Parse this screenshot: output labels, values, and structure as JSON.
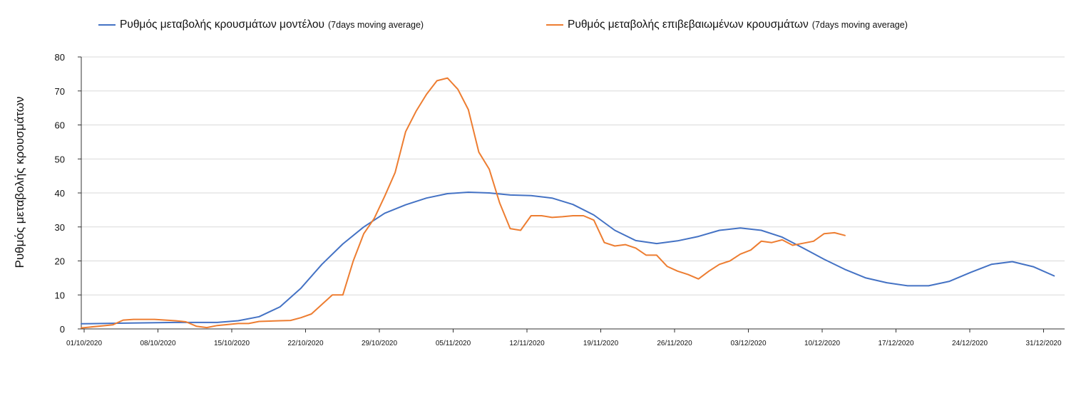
{
  "chart_data": {
    "type": "line",
    "title": "",
    "xlabel": "",
    "ylabel": "Ρυθμός μεταβολής κρουσμάτων",
    "ylim": [
      0,
      80
    ],
    "yticks": [
      0,
      10,
      20,
      30,
      40,
      50,
      60,
      70,
      80
    ],
    "xlim": [
      "01/10/2020",
      "03/01/2021"
    ],
    "xticks": [
      "01/10/2020",
      "08/10/2020",
      "15/10/2020",
      "22/10/2020",
      "29/10/2020",
      "05/11/2020",
      "12/11/2020",
      "19/11/2020",
      "26/11/2020",
      "03/12/2020",
      "10/12/2020",
      "17/12/2020",
      "24/12/2020",
      "31/12/2020"
    ],
    "grid": "horizontal",
    "legend_position": "top",
    "series": [
      {
        "name": "Ρυθμός μεταβολής κρουσμάτων μοντέλου",
        "note": "(7days moving average)",
        "color": "#4472c4",
        "points": [
          [
            "01/10/2020",
            1.5
          ],
          [
            "05/10/2020",
            1.7
          ],
          [
            "10/10/2020",
            1.9
          ],
          [
            "14/10/2020",
            1.9
          ],
          [
            "16/10/2020",
            2.4
          ],
          [
            "18/10/2020",
            3.6
          ],
          [
            "20/10/2020",
            6.5
          ],
          [
            "22/10/2020",
            12.0
          ],
          [
            "24/10/2020",
            19.0
          ],
          [
            "26/10/2020",
            25.0
          ],
          [
            "28/10/2020",
            30.0
          ],
          [
            "30/10/2020",
            34.0
          ],
          [
            "01/11/2020",
            36.5
          ],
          [
            "03/11/2020",
            38.5
          ],
          [
            "05/11/2020",
            39.8
          ],
          [
            "07/11/2020",
            40.2
          ],
          [
            "09/11/2020",
            40.0
          ],
          [
            "11/11/2020",
            39.4
          ],
          [
            "13/11/2020",
            39.2
          ],
          [
            "15/11/2020",
            38.5
          ],
          [
            "17/11/2020",
            36.6
          ],
          [
            "19/11/2020",
            33.5
          ],
          [
            "21/11/2020",
            29.0
          ],
          [
            "23/11/2020",
            26.0
          ],
          [
            "25/11/2020",
            25.1
          ],
          [
            "27/11/2020",
            25.9
          ],
          [
            "29/11/2020",
            27.2
          ],
          [
            "01/12/2020",
            29.0
          ],
          [
            "03/12/2020",
            29.7
          ],
          [
            "05/12/2020",
            29.0
          ],
          [
            "07/12/2020",
            27.0
          ],
          [
            "09/12/2020",
            23.8
          ],
          [
            "11/12/2020",
            20.5
          ],
          [
            "13/12/2020",
            17.5
          ],
          [
            "15/12/2020",
            15.0
          ],
          [
            "17/12/2020",
            13.6
          ],
          [
            "19/12/2020",
            12.7
          ],
          [
            "21/12/2020",
            12.7
          ],
          [
            "23/12/2020",
            14.0
          ],
          [
            "25/12/2020",
            16.6
          ],
          [
            "27/12/2020",
            19.0
          ],
          [
            "29/12/2020",
            19.8
          ],
          [
            "31/12/2020",
            18.3
          ],
          [
            "02/01/2021",
            15.6
          ]
        ]
      },
      {
        "name": "Ρυθμός μεταβολής επιβεβαιωμένων κρουσμάτων",
        "note": "(7days moving average)",
        "color": "#ed7d31",
        "points": [
          [
            "01/10/2020",
            0.3
          ],
          [
            "03/10/2020",
            0.9
          ],
          [
            "04/10/2020",
            1.2
          ],
          [
            "05/10/2020",
            2.6
          ],
          [
            "06/10/2020",
            2.8
          ],
          [
            "08/10/2020",
            2.8
          ],
          [
            "10/10/2020",
            2.4
          ],
          [
            "11/10/2020",
            2.1
          ],
          [
            "12/10/2020",
            0.8
          ],
          [
            "13/10/2020",
            0.4
          ],
          [
            "14/10/2020",
            1.0
          ],
          [
            "16/10/2020",
            1.6
          ],
          [
            "17/10/2020",
            1.6
          ],
          [
            "18/10/2020",
            2.2
          ],
          [
            "20/10/2020",
            2.4
          ],
          [
            "21/10/2020",
            2.5
          ],
          [
            "22/10/2020",
            3.3
          ],
          [
            "23/10/2020",
            4.4
          ],
          [
            "24/10/2020",
            7.2
          ],
          [
            "25/10/2020",
            10.0
          ],
          [
            "26/10/2020",
            10.0
          ],
          [
            "27/10/2020",
            20.0
          ],
          [
            "28/10/2020",
            28.0
          ],
          [
            "29/10/2020",
            32.5
          ],
          [
            "30/10/2020",
            39.0
          ],
          [
            "31/10/2020",
            46.0
          ],
          [
            "01/11/2020",
            58.0
          ],
          [
            "02/11/2020",
            64.0
          ],
          [
            "03/11/2020",
            69.0
          ],
          [
            "04/11/2020",
            73.0
          ],
          [
            "05/11/2020",
            73.8
          ],
          [
            "06/11/2020",
            70.5
          ],
          [
            "07/11/2020",
            64.5
          ],
          [
            "08/11/2020",
            52.0
          ],
          [
            "09/11/2020",
            47.0
          ],
          [
            "10/11/2020",
            37.0
          ],
          [
            "11/11/2020",
            29.5
          ],
          [
            "12/11/2020",
            29.0
          ],
          [
            "13/11/2020",
            33.3
          ],
          [
            "14/11/2020",
            33.3
          ],
          [
            "15/11/2020",
            32.8
          ],
          [
            "16/11/2020",
            33.0
          ],
          [
            "17/11/2020",
            33.3
          ],
          [
            "18/11/2020",
            33.3
          ],
          [
            "19/11/2020",
            32.0
          ],
          [
            "20/11/2020",
            25.4
          ],
          [
            "21/11/2020",
            24.4
          ],
          [
            "22/11/2020",
            24.8
          ],
          [
            "23/11/2020",
            23.8
          ],
          [
            "24/11/2020",
            21.7
          ],
          [
            "25/11/2020",
            21.7
          ],
          [
            "26/11/2020",
            18.4
          ],
          [
            "27/11/2020",
            17.0
          ],
          [
            "28/11/2020",
            16.0
          ],
          [
            "29/11/2020",
            14.7
          ],
          [
            "30/11/2020",
            17.0
          ],
          [
            "01/12/2020",
            19.0
          ],
          [
            "02/12/2020",
            20.0
          ],
          [
            "03/12/2020",
            22.0
          ],
          [
            "04/12/2020",
            23.2
          ],
          [
            "05/12/2020",
            25.8
          ],
          [
            "06/12/2020",
            25.4
          ],
          [
            "07/12/2020",
            26.2
          ],
          [
            "08/12/2020",
            24.6
          ],
          [
            "09/12/2020",
            25.2
          ],
          [
            "10/12/2020",
            25.8
          ],
          [
            "11/12/2020",
            28.0
          ],
          [
            "12/12/2020",
            28.3
          ],
          [
            "13/12/2020",
            27.5
          ]
        ]
      }
    ]
  }
}
